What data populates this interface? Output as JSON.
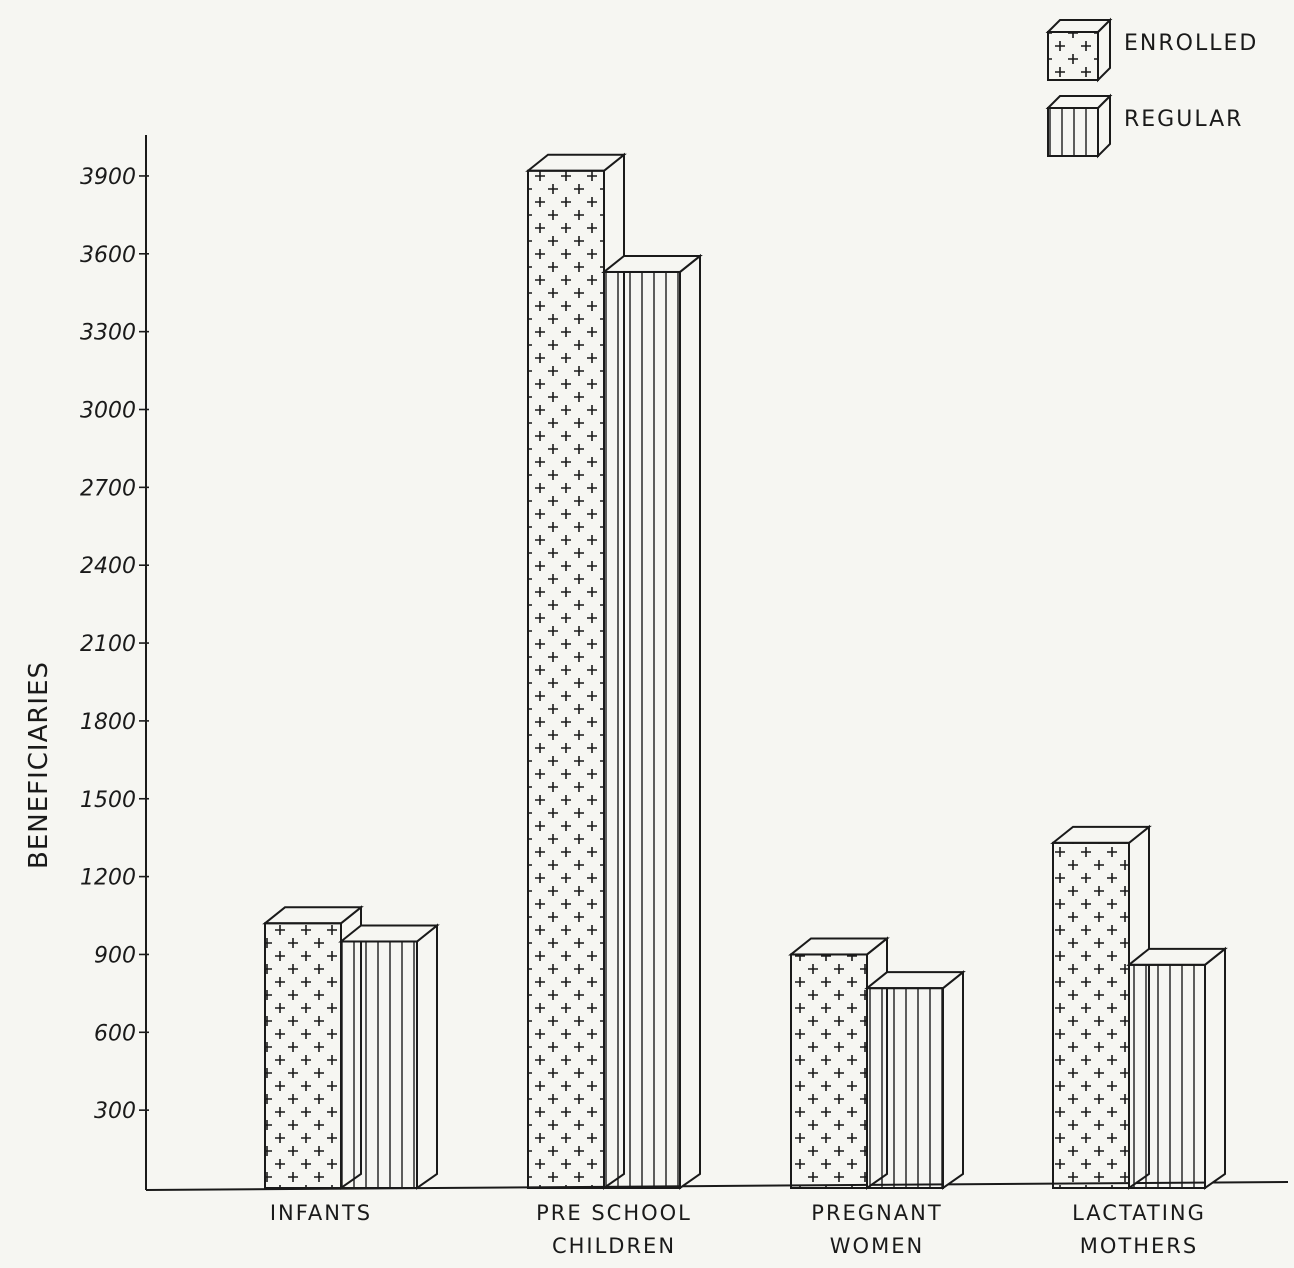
{
  "chart_data": {
    "type": "bar",
    "ylabel": "BENEFICIARIES",
    "xlabel": "",
    "ylim": [
      0,
      4200
    ],
    "yticks": [
      "300",
      "600",
      "900",
      "1200",
      "1500",
      "1800",
      "2100",
      "2400",
      "2700",
      "3000",
      "3300",
      "3600",
      "3900"
    ],
    "categories": [
      [
        "INFANTS"
      ],
      [
        "PRE SCHOOL",
        "CHILDREN"
      ],
      [
        "PREGNANT",
        "WOMEN"
      ],
      [
        "LACTATING",
        "MOTHERS"
      ]
    ],
    "series": [
      {
        "name": "ENROLLED",
        "pattern": "plus",
        "values": [
          1020,
          3920,
          900,
          1330
        ]
      },
      {
        "name": "REGULAR",
        "pattern": "vertical-lines",
        "values": [
          950,
          3530,
          770,
          860
        ]
      }
    ],
    "legend": {
      "placement": "top-right"
    },
    "grid": false,
    "style": "hand-drawn 3D bars",
    "colors": {
      "ink": "#1a1a1a",
      "paper": "#f6f6f2"
    }
  }
}
